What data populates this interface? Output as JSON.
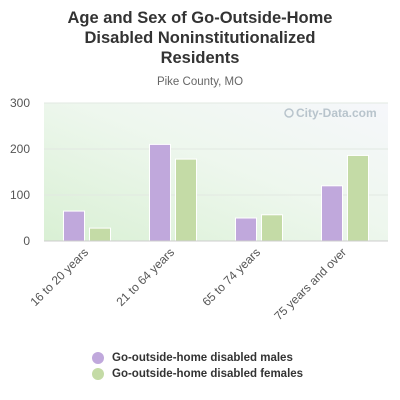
{
  "chart_data": {
    "type": "bar",
    "title_lines": [
      "Age and Sex of Go-Outside-Home",
      "Disabled Noninstitutionalized",
      "Residents"
    ],
    "subtitle": "Pike County, MO",
    "categories": [
      "16 to 20 years",
      "21 to 64 years",
      "65 to 74 years",
      "75 years and over"
    ],
    "series": [
      {
        "name": "Go-outside-home disabled males",
        "color": "#c0a8dc",
        "values": [
          65,
          210,
          50,
          120
        ]
      },
      {
        "name": "Go-outside-home disabled females",
        "color": "#c4dba6",
        "values": [
          28,
          178,
          57,
          186
        ]
      }
    ],
    "ylim": [
      0,
      300
    ],
    "yticks": [
      "0",
      "100",
      "200",
      "300"
    ],
    "grid": true,
    "legend_position": "bottom",
    "watermark": "City-Data.com"
  }
}
